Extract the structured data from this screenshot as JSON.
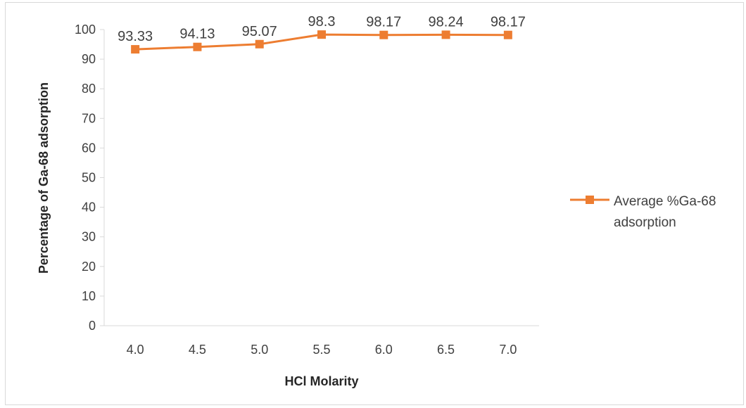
{
  "chart_data": {
    "type": "line",
    "categories": [
      "4.0",
      "4.5",
      "5.0",
      "5.5",
      "6.0",
      "6.5",
      "7.0"
    ],
    "series": [
      {
        "name_lines": [
          "Average %Ga-68",
          "adsorption"
        ],
        "values": [
          93.33,
          94.13,
          95.07,
          98.3,
          98.17,
          98.24,
          98.17
        ],
        "data_labels": [
          "93.33",
          "94.13",
          "95.07",
          "98.3",
          "98.17",
          "98.24",
          "98.17"
        ],
        "color": "#ed7d31",
        "marker": "square"
      }
    ],
    "xlabel": "HCl Molarity",
    "ylabel": "Percentage of Ga-68 adsorption",
    "ylim": [
      0,
      100
    ],
    "yticks": [
      0,
      10,
      20,
      30,
      40,
      50,
      60,
      70,
      80,
      90,
      100
    ],
    "grid": false,
    "legend_position": "right"
  }
}
